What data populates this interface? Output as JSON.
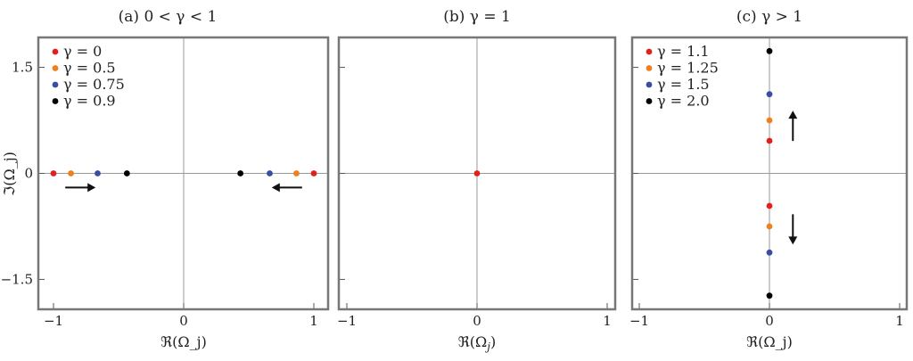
{
  "chart_data": [
    {
      "type": "scatter",
      "title": "(a)  0 < γ < 1",
      "xlabel": "ℜ(Ω_j)",
      "ylabel": "ℑ(Ω_j)",
      "xlim": [
        -1.05,
        1.05
      ],
      "ylim": [
        -1.95,
        1.95
      ],
      "x_ticks": [
        -1,
        0,
        1
      ],
      "x_tick_labels": [
        "−1",
        "0",
        "1"
      ],
      "y_ticks": [
        -1.5,
        0,
        1.5
      ],
      "y_tick_labels": [
        "−1.5",
        "0",
        "1.5"
      ],
      "grid": false,
      "legend_position": "top-left",
      "series": [
        {
          "name": "γ = 0",
          "color": "#e3211c",
          "points": [
            [
              -1,
              0
            ],
            [
              1,
              0
            ]
          ]
        },
        {
          "name": "γ = 0.5",
          "color": "#f07f1e",
          "points": [
            [
              -0.866,
              0
            ],
            [
              0.866,
              0
            ]
          ]
        },
        {
          "name": "γ = 0.75",
          "color": "#3a4ea1",
          "points": [
            [
              -0.661,
              0
            ],
            [
              0.661,
              0
            ]
          ]
        },
        {
          "name": "γ = 0.9",
          "color": "#000000",
          "points": [
            [
              -0.436,
              0
            ],
            [
              0.436,
              0
            ]
          ]
        }
      ],
      "arrows": [
        {
          "direction": "right",
          "x": -0.8,
          "y": -0.2
        },
        {
          "direction": "left",
          "x": 0.8,
          "y": -0.2
        }
      ]
    },
    {
      "type": "scatter",
      "title": "(b)  γ = 1",
      "xlabel": "",
      "ylabel": "",
      "xlim": [
        -1.05,
        1.05
      ],
      "ylim": [
        -1.95,
        1.95
      ],
      "x_ticks": [
        -1,
        0,
        1
      ],
      "x_tick_labels": [
        "−1",
        "0",
        "1"
      ],
      "y_ticks": [
        -1.5,
        0,
        1.5
      ],
      "y_tick_labels": [],
      "grid": false,
      "series": [
        {
          "name": "",
          "color": "#e3211c",
          "points": [
            [
              0,
              0
            ]
          ]
        }
      ],
      "arrows": []
    },
    {
      "type": "scatter",
      "title": "(c)  γ > 1",
      "xlabel": "ℜ(Ω_j)",
      "ylabel": "",
      "xlim": [
        -1.05,
        1.05
      ],
      "ylim": [
        -1.95,
        1.95
      ],
      "x_ticks": [
        -1,
        0,
        1
      ],
      "x_tick_labels": [
        "−1",
        "0",
        "1"
      ],
      "y_ticks": [
        -1.5,
        0,
        1.5
      ],
      "y_tick_labels": [],
      "grid": false,
      "legend_position": "top-left",
      "series": [
        {
          "name": "γ = 1.1",
          "color": "#e3211c",
          "points": [
            [
              0,
              0.46
            ],
            [
              0,
              -0.46
            ]
          ]
        },
        {
          "name": "γ = 1.25",
          "color": "#f07f1e",
          "points": [
            [
              0,
              0.75
            ],
            [
              0,
              -0.75
            ]
          ]
        },
        {
          "name": "γ = 1.5",
          "color": "#3a4ea1",
          "points": [
            [
              0,
              1.12
            ],
            [
              0,
              -1.12
            ]
          ]
        },
        {
          "name": "γ = 2.0",
          "color": "#000000",
          "points": [
            [
              0,
              1.73
            ],
            [
              0,
              -1.73
            ]
          ]
        }
      ],
      "arrows": [
        {
          "direction": "up",
          "x": 0.18,
          "y": 0.66
        },
        {
          "direction": "down",
          "x": 0.18,
          "y": -0.78
        }
      ]
    }
  ]
}
